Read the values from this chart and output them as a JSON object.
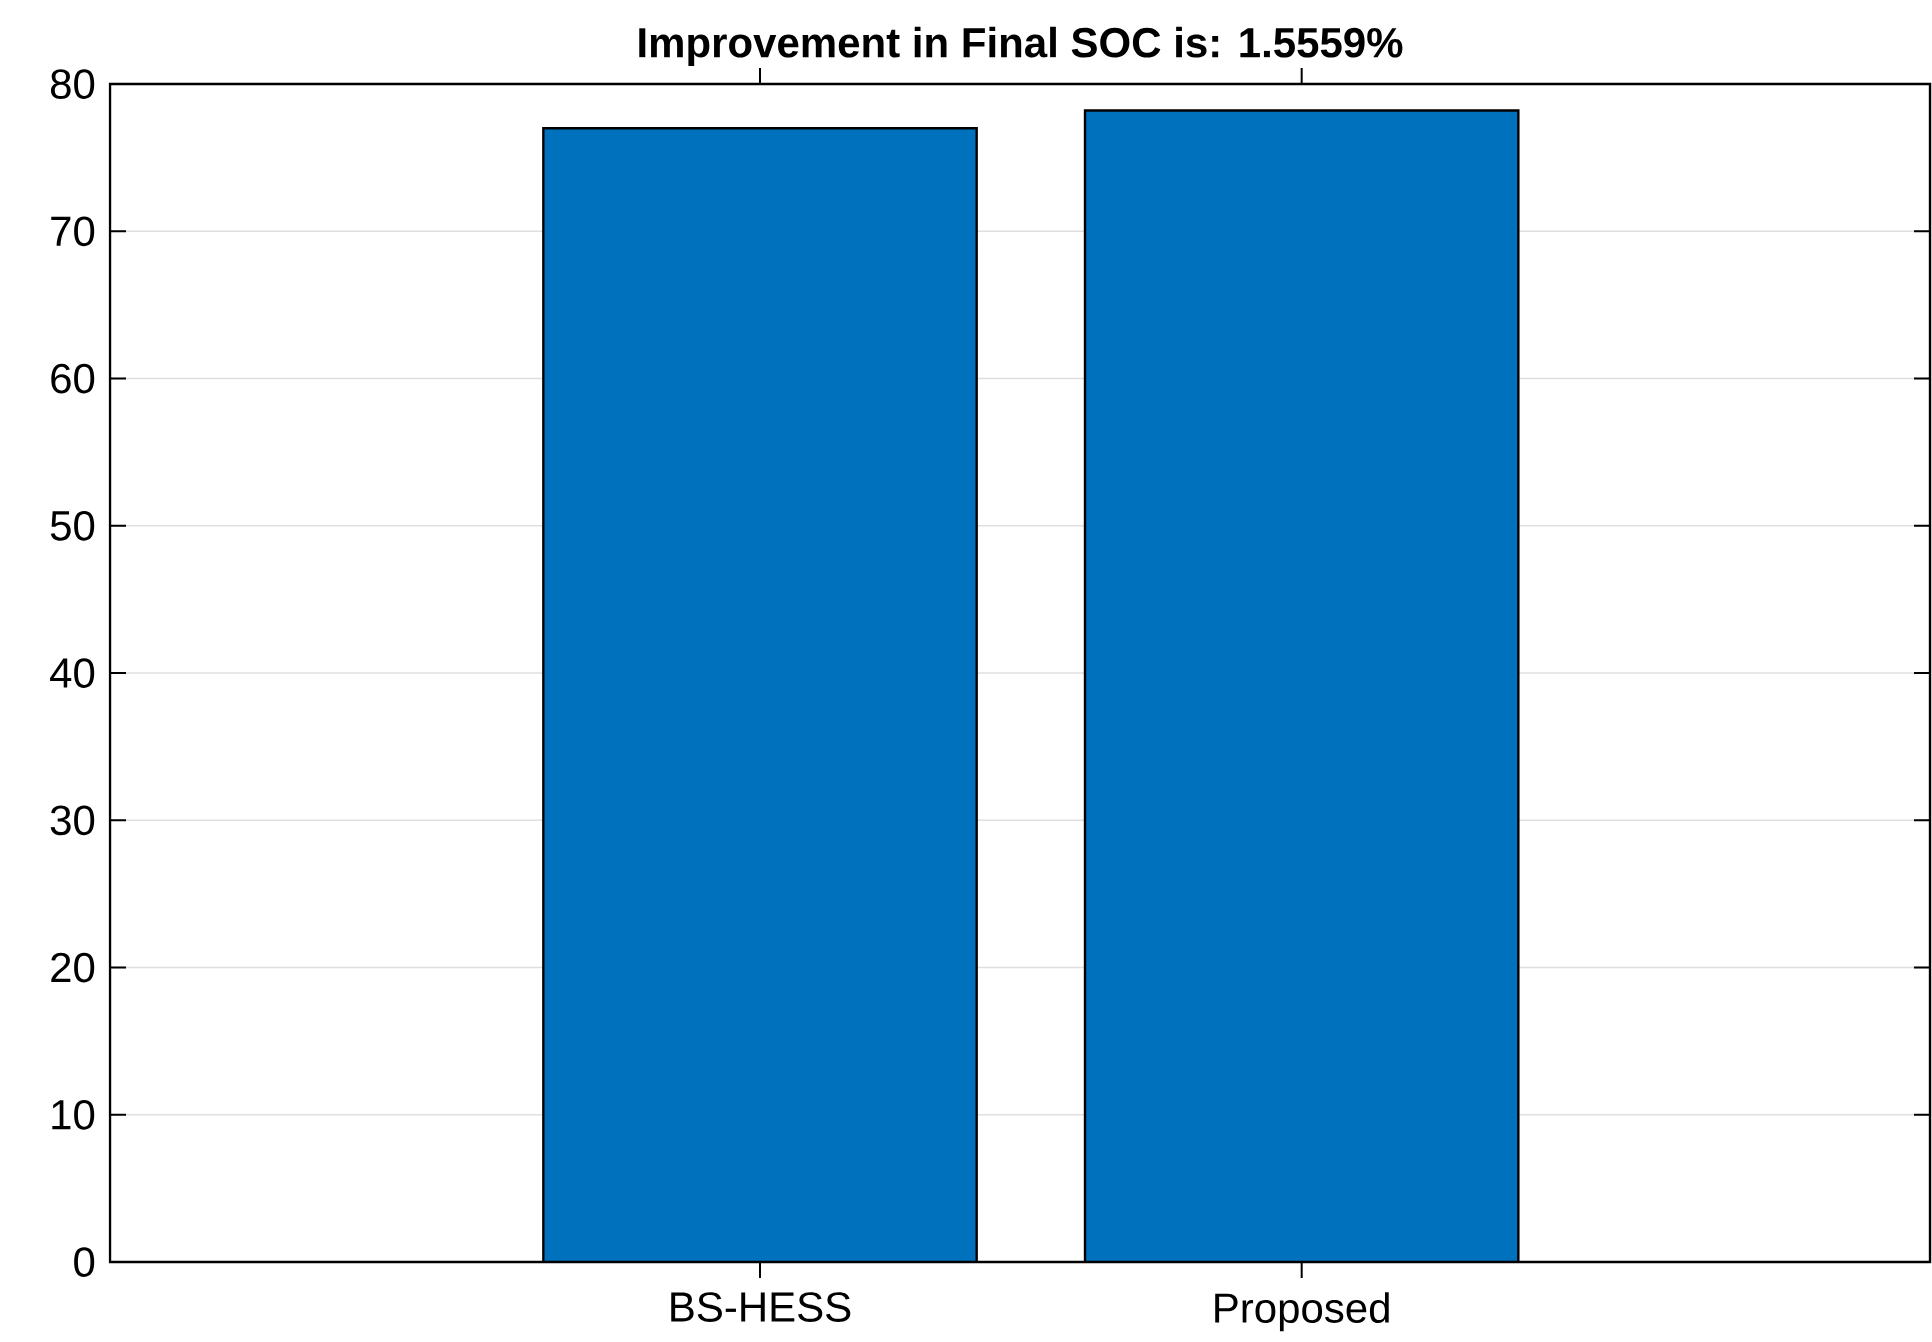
{
  "chart_data": {
    "type": "bar",
    "title": "Improvement in Final SOC is: 1.5559%",
    "categories": [
      "BS-HESS",
      "Proposed"
    ],
    "values": [
      77.0,
      78.2
    ],
    "color": "#0072bd",
    "ylim": [
      0,
      80
    ],
    "yticks": [
      0,
      10,
      20,
      30,
      40,
      50,
      60,
      70,
      80
    ],
    "grid": "y"
  }
}
